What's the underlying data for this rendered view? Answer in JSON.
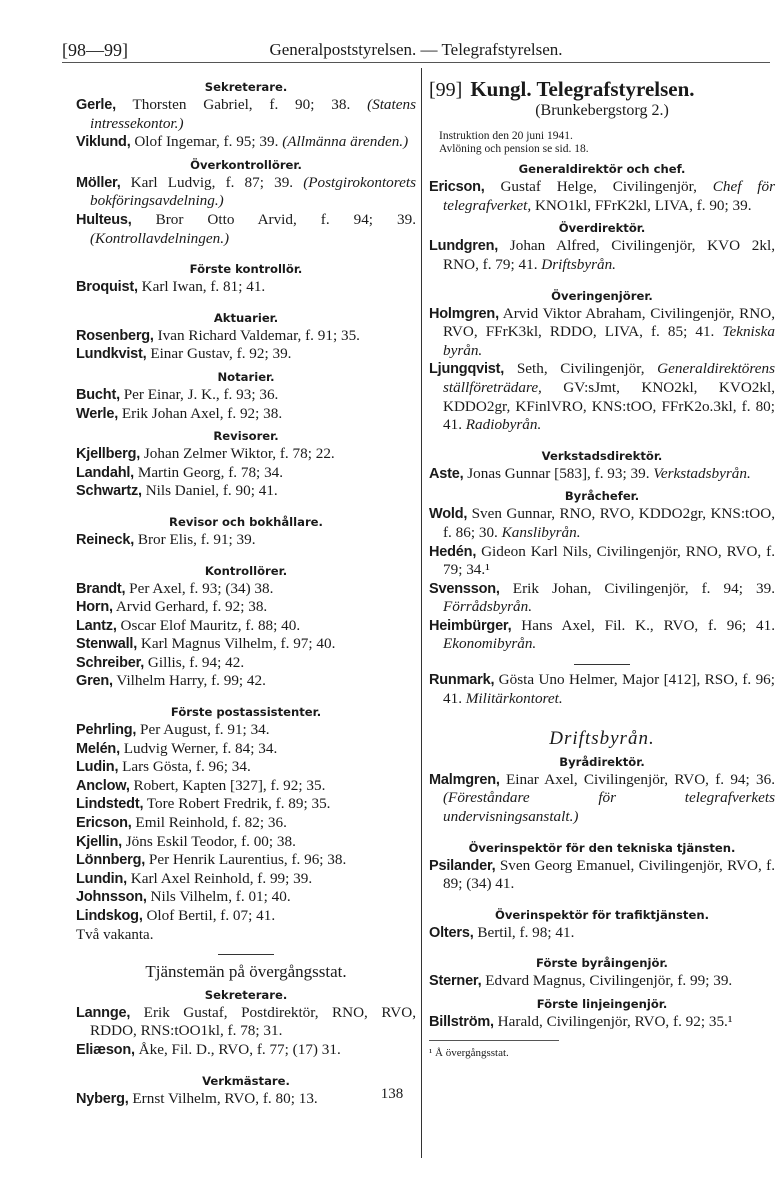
{
  "header": {
    "page_ref": "[98—99]",
    "title": "Generalpoststyrelsen. — Telegrafstyrelsen."
  },
  "left": [
    {
      "h": "Sekreterare."
    },
    {
      "e": [
        {
          "n": "Gerle,"
        },
        {
          "t": " Thorsten Gabriel, f. 90; 38. "
        },
        {
          "i": "(Statens intressekontor.)"
        }
      ]
    },
    {
      "e": [
        {
          "n": "Viklund,"
        },
        {
          "t": " Olof Ingemar, f. 95; 39. "
        },
        {
          "i": "(Allmänna ärenden.)"
        }
      ]
    },
    {
      "h": "Överkontrollörer."
    },
    {
      "e": [
        {
          "n": "Möller,"
        },
        {
          "t": " Karl Ludvig, f. 87; 39. "
        },
        {
          "i": "(Postgirokontorets bokföringsavdelning.)"
        }
      ]
    },
    {
      "e": [
        {
          "n": "Hulteus,"
        },
        {
          "t": " Bror Otto Arvid, f. 94; 39. "
        },
        {
          "i": "(Kontrollavdelningen.)"
        }
      ]
    },
    {
      "h": "Förste kontrollör.",
      "gap": true
    },
    {
      "e": [
        {
          "n": "Broquist,"
        },
        {
          "t": " Karl Iwan, f. 81; 41."
        }
      ]
    },
    {
      "h": "Aktuarier.",
      "gap": true
    },
    {
      "e": [
        {
          "n": "Rosenberg,"
        },
        {
          "t": " Ivan Richard Valdemar, f. 91; 35."
        }
      ]
    },
    {
      "e": [
        {
          "n": "Lundkvist,"
        },
        {
          "t": " Einar Gustav, f. 92; 39."
        }
      ]
    },
    {
      "h": "Notarier."
    },
    {
      "e": [
        {
          "n": "Bucht,"
        },
        {
          "t": " Per Einar, J. K., f. 93; 36."
        }
      ]
    },
    {
      "e": [
        {
          "n": "Werle,"
        },
        {
          "t": " Erik Johan Axel, f. 92; 38."
        }
      ]
    },
    {
      "h": "Revisorer."
    },
    {
      "e": [
        {
          "n": "Kjellberg,"
        },
        {
          "t": " Johan Zelmer Wiktor, f. 78; 22."
        }
      ]
    },
    {
      "e": [
        {
          "n": "Landahl,"
        },
        {
          "t": " Martin Georg, f. 78; 34."
        }
      ]
    },
    {
      "e": [
        {
          "n": "Schwartz,"
        },
        {
          "t": " Nils Daniel, f. 90; 41."
        }
      ]
    },
    {
      "h": "Revisor och bokhållare.",
      "gap": true
    },
    {
      "e": [
        {
          "n": "Reineck,"
        },
        {
          "t": " Bror Elis, f. 91; 39."
        }
      ]
    },
    {
      "h": "Kontrollörer.",
      "gap": true
    },
    {
      "e": [
        {
          "n": "Brandt,"
        },
        {
          "t": " Per Axel, f. 93; (34) 38."
        }
      ]
    },
    {
      "e": [
        {
          "n": "Horn,"
        },
        {
          "t": " Arvid Gerhard, f. 92; 38."
        }
      ]
    },
    {
      "e": [
        {
          "n": "Lantz,"
        },
        {
          "t": " Oscar Elof Mauritz, f. 88; 40."
        }
      ]
    },
    {
      "e": [
        {
          "n": "Stenwall,"
        },
        {
          "t": " Karl Magnus Vilhelm, f. 97; 40."
        }
      ]
    },
    {
      "e": [
        {
          "n": "Schreiber,"
        },
        {
          "t": " Gillis, f. 94; 42."
        }
      ]
    },
    {
      "e": [
        {
          "n": "Gren,"
        },
        {
          "t": " Vilhelm Harry, f. 99; 42."
        }
      ]
    },
    {
      "h": "Förste postassistenter.",
      "gap": true
    },
    {
      "e": [
        {
          "n": "Pehrling,"
        },
        {
          "t": " Per August, f. 91; 34."
        }
      ]
    },
    {
      "e": [
        {
          "n": "Melén,"
        },
        {
          "t": " Ludvig Werner, f. 84; 34."
        }
      ]
    },
    {
      "e": [
        {
          "n": "Ludin,"
        },
        {
          "t": " Lars Gösta, f. 96; 34."
        }
      ]
    },
    {
      "e": [
        {
          "n": "Anclow,"
        },
        {
          "t": " Robert, Kapten [327], f. 92; 35."
        }
      ]
    },
    {
      "e": [
        {
          "n": "Lindstedt,"
        },
        {
          "t": " Tore Robert Fredrik, f. 89; 35."
        }
      ]
    },
    {
      "e": [
        {
          "n": "Ericson,"
        },
        {
          "t": " Emil Reinhold, f. 82; 36."
        }
      ]
    },
    {
      "e": [
        {
          "n": "Kjellin,"
        },
        {
          "t": " Jöns Eskil Teodor, f. 00; 38."
        }
      ]
    },
    {
      "e": [
        {
          "n": "Lönnberg,"
        },
        {
          "t": " Per Henrik Laurentius, f. 96; 38."
        }
      ]
    },
    {
      "e": [
        {
          "n": "Lundin,"
        },
        {
          "t": " Karl Axel Reinhold, f. 99; 39."
        }
      ]
    },
    {
      "e": [
        {
          "n": "Johnsson,"
        },
        {
          "t": " Nils Vilhelm, f. 01; 40."
        }
      ]
    },
    {
      "e": [
        {
          "n": "Lindskog,"
        },
        {
          "t": " Olof Bertil, f. 07; 41."
        }
      ]
    },
    {
      "p": "Två vakanta."
    },
    {
      "rule": true
    },
    {
      "big": "Tjänstemän på övergångsstat."
    },
    {
      "h": "Sekreterare."
    },
    {
      "e": [
        {
          "n": "Lannge,"
        },
        {
          "t": " Erik Gustaf, Postdirektör, RNO, RVO, RDDO, RNS:tOO1kl, f. 78; 31."
        }
      ]
    },
    {
      "e": [
        {
          "n": "Eliæson,"
        },
        {
          "t": " Åke, Fil. D., RVO, f. 77; (17) 31."
        }
      ]
    },
    {
      "h": "Verkmästare.",
      "gap": true
    },
    {
      "e": [
        {
          "n": "Nyberg,"
        },
        {
          "t": " Ernst Vilhelm, RVO, f. 80; 13."
        }
      ]
    }
  ],
  "right_head": {
    "ref": "[99]",
    "title": "Kungl. Telegrafstyrelsen.",
    "address": "(Brunkebergstorg 2.)",
    "instr1": "Instruktion den 20 juni 1941.",
    "instr2": "Avlöning och pension se sid. 18."
  },
  "right": [
    {
      "h": "Generaldirektör och chef."
    },
    {
      "e": [
        {
          "n": "Ericson,"
        },
        {
          "t": " Gustaf Helge, Civilingenjör, "
        },
        {
          "i": "Chef för telegrafverket,"
        },
        {
          "t": " KNO1kl, FFrK2kl, LIVA, f. 90; 39."
        }
      ]
    },
    {
      "h": "Överdirektör."
    },
    {
      "e": [
        {
          "n": "Lundgren,"
        },
        {
          "t": " Johan Alfred, Civilingenjör, KVO 2kl, RNO, f. 79; 41. "
        },
        {
          "i": "Driftsbyrån."
        }
      ]
    },
    {
      "h": "Överingenjörer.",
      "gap": true
    },
    {
      "e": [
        {
          "n": "Holmgren,"
        },
        {
          "t": " Arvid Viktor Abraham, Civilingenjör, RNO, RVO, FFrK3kl, RDDO, LIVA, f. 85; 41. "
        },
        {
          "i": "Tekniska byrån."
        }
      ]
    },
    {
      "e": [
        {
          "n": "Ljungqvist,"
        },
        {
          "t": " Seth, Civilingenjör, "
        },
        {
          "i": "Generaldirektörens ställföreträdare,"
        },
        {
          "t": " GV:sJmt, KNO2kl, KVO2kl, KDDO2gr, KFinlVRO, KNS:tOO, FFrK2o.3kl, f. 80; 41. "
        },
        {
          "i": "Radiobyrån."
        }
      ]
    },
    {
      "h": "Verkstadsdirektör.",
      "gap": true
    },
    {
      "e": [
        {
          "n": "Aste,"
        },
        {
          "t": " Jonas Gunnar [583], f. 93; 39. "
        },
        {
          "i": "Verkstadsbyrån."
        }
      ]
    },
    {
      "h": "Byråchefer."
    },
    {
      "e": [
        {
          "n": "Wold,"
        },
        {
          "t": " Sven Gunnar, RNO, RVO, KDDO2gr, KNS:tOO, f. 86; 30. "
        },
        {
          "i": "Kanslibyrån."
        }
      ]
    },
    {
      "e": [
        {
          "n": "Hedén,"
        },
        {
          "t": " Gideon Karl Nils, Civilingenjör, RNO, RVO, f. 79; 34.¹"
        }
      ]
    },
    {
      "e": [
        {
          "n": "Svensson,"
        },
        {
          "t": " Erik Johan, Civilingenjör, f. 94; 39. "
        },
        {
          "i": "Förrådsbyrån."
        }
      ]
    },
    {
      "e": [
        {
          "n": "Heimbürger,"
        },
        {
          "t": " Hans Axel, Fil. K., RVO, f. 96; 41. "
        },
        {
          "i": "Ekonomibyrån."
        }
      ]
    },
    {
      "rule": true
    },
    {
      "e": [
        {
          "n": "Runmark,"
        },
        {
          "t": " Gösta Uno Helmer, Major [412], RSO, f. 96; 41. "
        },
        {
          "i": "Militärkontoret."
        }
      ]
    },
    {
      "sec": "Driftsbyrån."
    },
    {
      "h": "Byrådirektör."
    },
    {
      "e": [
        {
          "n": "Malmgren,"
        },
        {
          "t": " Einar Axel, Civilingenjör, RVO, f. 94; 36. "
        },
        {
          "i": "(Föreståndare för telegrafverkets undervisningsanstalt.)"
        }
      ]
    },
    {
      "h": "Överinspektör för den tekniska tjänsten.",
      "gap": true
    },
    {
      "e": [
        {
          "n": "Psilander,"
        },
        {
          "t": " Sven Georg Emanuel, Civilingenjör, RVO, f. 89; (34) 41."
        }
      ]
    },
    {
      "h": "Överinspektör för trafiktjänsten.",
      "gap": true
    },
    {
      "e": [
        {
          "n": "Olters,"
        },
        {
          "t": " Bertil, f. 98; 41."
        }
      ]
    },
    {
      "h": "Förste byråingenjör.",
      "gap": true
    },
    {
      "e": [
        {
          "n": "Sterner,"
        },
        {
          "t": " Edvard Magnus, Civilingenjör, f. 99; 39."
        }
      ]
    },
    {
      "h": "Förste linjeingenjör."
    },
    {
      "e": [
        {
          "n": "Billström,"
        },
        {
          "t": " Harald, Civilingenjör, RVO, f. 92; 35.¹"
        }
      ]
    },
    {
      "foot": "¹ Å övergångsstat."
    }
  ],
  "page_number": "138"
}
